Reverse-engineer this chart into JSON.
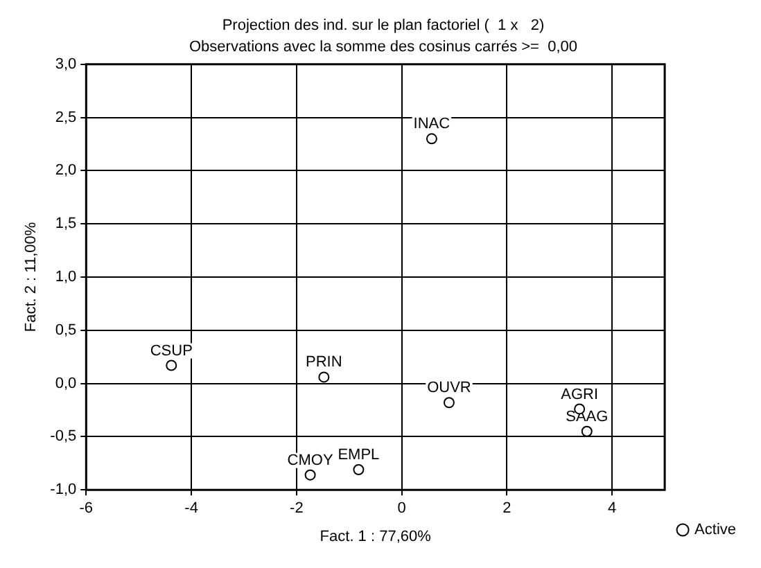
{
  "chart_data": {
    "type": "scatter",
    "title": "Projection des ind. sur le plan factoriel (  1 x   2)",
    "subtitle": "Observations avec la somme des cosinus carrés >=  0,00",
    "xlabel": "Fact. 1 : 77,60%",
    "ylabel": "Fact. 2 : 11,00%",
    "series": [
      {
        "name": "Active",
        "color": "#000000",
        "x": [
          -4.38,
          -1.48,
          -1.74,
          -0.82,
          0.57,
          0.9,
          3.38,
          3.52
        ],
        "values": [
          0.17,
          0.06,
          -0.86,
          -0.81,
          2.3,
          -0.18,
          -0.24,
          -0.45
        ]
      }
    ],
    "annotations": [
      {
        "text": "CSUP",
        "x": -4.38,
        "y": 0.17
      },
      {
        "text": "PRIN",
        "x": -1.48,
        "y": 0.06
      },
      {
        "text": "CMOY",
        "x": -1.74,
        "y": -0.86
      },
      {
        "text": "EMPL",
        "x": -0.82,
        "y": -0.81
      },
      {
        "text": "INAC",
        "x": 0.57,
        "y": 2.3
      },
      {
        "text": "OUVR",
        "x": 0.9,
        "y": -0.18
      },
      {
        "text": "AGRI",
        "x": 3.38,
        "y": -0.24
      },
      {
        "text": "SAAG",
        "x": 3.52,
        "y": -0.45
      }
    ],
    "xlim": [
      -6,
      5
    ],
    "xticks": [
      -6,
      -4,
      -2,
      0,
      2,
      4
    ],
    "ylim": [
      -1,
      3
    ],
    "yticks": [
      {
        "value": -1,
        "label": "-1,0"
      },
      {
        "value": -0.5,
        "label": "-0,5"
      },
      {
        "value": 0,
        "label": "0,0"
      },
      {
        "value": 0.5,
        "label": "0,5"
      },
      {
        "value": 1,
        "label": "1,0"
      },
      {
        "value": 1.5,
        "label": "1,5"
      },
      {
        "value": 2,
        "label": "2,0"
      },
      {
        "value": 2.5,
        "label": "2,5"
      },
      {
        "value": 3,
        "label": "3,0"
      }
    ],
    "grid": true,
    "legend": "bottom right",
    "marker": "circle"
  }
}
